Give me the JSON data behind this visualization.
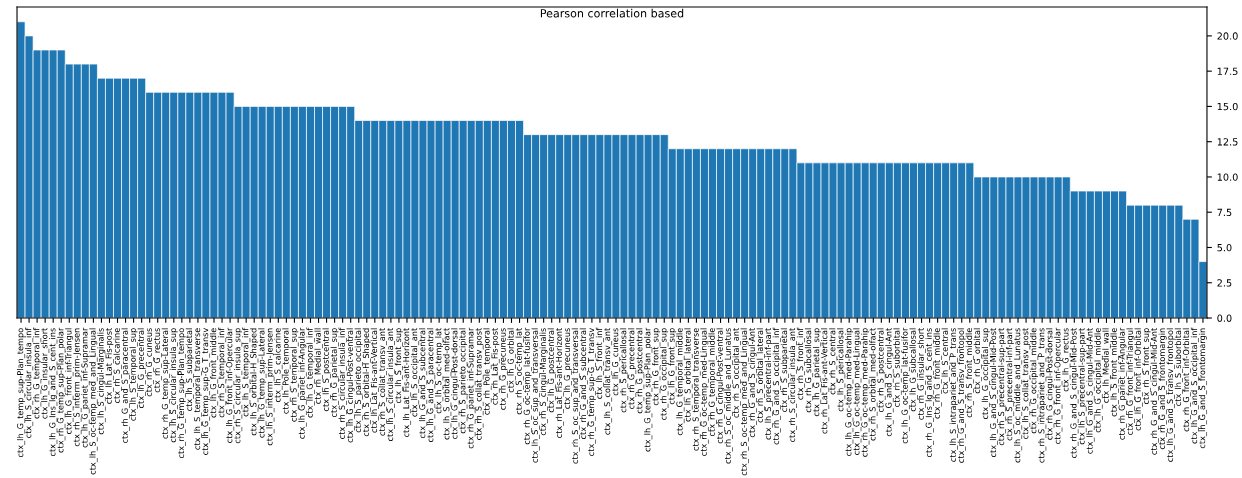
{
  "chart_data": {
    "type": "bar",
    "title": "Pearson correlation based",
    "color": "#1f77b4",
    "categories": [
      "ctx_lh_G_temp_sup-Plan_tempo",
      "ctx_lh_S_circular_insula_inf",
      "ctx_rh_G_temporal_inf",
      "ctx_lh_G_insular_short",
      "ctx_lh_G_Ins_lg_and_S_cent_ins",
      "ctx_rh_G_temp_sup-Plan_polar",
      "ctx_lh_G_front_inf-Triangul",
      "ctx_rh_S_interm_prim-Jensen",
      "ctx_lh_G_pariet_inf-Supramar",
      "ctx_lh_S_oc-temp_med_and_Lingual",
      "ctx_lh_S_cingul-Marginalis",
      "ctx_lh_Lat_Fis-post",
      "ctx_rh_S_calcarine",
      "ctx_rh_G_and_S_paracentral",
      "ctx_lh_S_temporal_sup",
      "ctx_lh_G_precentral",
      "ctx_rh_G_cuneus",
      "ctx_rh_G_rectus",
      "ctx_rh_G_temp_sup-Lateral",
      "ctx_lh_S_circular_insula_sup",
      "ctx_rh_G_temp_sup-Plan_tempo",
      "ctx_lh_S_subparietal",
      "ctx_lh_S_temporal_transverse",
      "ctx_lh_G_temp_sup-G_T_transv",
      "ctx_lh_G_front_middle",
      "ctx_rh_S_temporal_inf",
      "ctx_lh_G_front_inf-Opercular",
      "ctx_rh_S_circular_insula_sup",
      "ctx_lh_S_temporal_inf",
      "ctx_lh_S_orbital-H_Shaped",
      "ctx_lh_G_temp_sup-Lateral",
      "ctx_lh_S_interm_prim-Jensen",
      "ctx_lh_S_calcarine",
      "ctx_lh_Pole_temporal",
      "ctx_rh_S_temporal_sup",
      "ctx_lh_G_pariet_inf-Angular",
      "ctx_lh_G_temporal_inf",
      "ctx_rh_Medial_wall",
      "ctx_lh_S_postcentral",
      "ctx_rh_G_parietal_sup",
      "ctx_rh_S_circular_insula_inf",
      "ctx_lh_G_cingul-Post-ventral",
      "ctx_lh_S_parieto_occipital",
      "ctx_rh_S_orbital-H_Shaped",
      "ctx_lh_Lat_Fis-ant-Vertical",
      "ctx_rh_S_collat_transv_ant",
      "ctx_lh_S_circular_insula_ant",
      "ctx_lh_S_front_sup",
      "ctx_lh_Lat_Fis-ant-Horizont",
      "ctx_lh_S_occipital_ant",
      "ctx_lh_G_and_S_subcentral",
      "ctx_lh_G_and_S_paracentral",
      "ctx_lh_S_oc-temp_lat",
      "ctx_lh_S_orbital_med-olfact",
      "ctx_lh_G_cingul-Post-dorsal",
      "ctx_rh_S_parieto_occipital",
      "ctx_rh_G_pariet_inf-Supramar",
      "ctx_rh_S_collat_transv_post",
      "ctx_rh_Pole_temporal",
      "ctx_rh_Lat_Fis-post",
      "ctx_rh_G_precuneus",
      "ctx_lh_G_orbital",
      "ctx_rh_S_oc-temp_lat",
      "ctx_rh_G_oc-temp_lat-fusifor",
      "ctx_lh_S_oc_sup_and_transversal",
      "ctx_rh_S_cingul-Marginalis",
      "ctx_lh_G_postcentral",
      "ctx_rh_Lat_Fis-ant-Horizont",
      "ctx_lh_G_precuneus",
      "ctx_rh_S_oc_sup_and_transversal",
      "ctx_rh_G_and_S_subcentral",
      "ctx_rh_G_temp_sup-G_T_transv",
      "ctx_lh_S_front_inf",
      "ctx_lh_S_collat_transv_ant",
      "ctx_lh_G_cuneus",
      "ctx_rh_S_pericallosal",
      "ctx_rh_G_precentral",
      "ctx_rh_G_postcentral",
      "ctx_lh_G_temp_sup-Plan_polar",
      "ctx_rh_G_front_sup",
      "ctx_rh_G_occipital_sup",
      "ctx_lh_G_front_sup",
      "ctx_lh_G_temporal_middle",
      "ctx_lh_S_orbital_lateral",
      "ctx_rh_S_temporal_transverse",
      "ctx_rh_G_oc-temp_med-Lingual",
      "ctx_rh_G_temporal_middle",
      "ctx_rh_G_cingul-Post-ventral",
      "ctx_rh_S_oc_middle_and_Lunatus",
      "ctx_rh_S_occipital_ant",
      "ctx_rh_S_oc-temp_med_and_Lingual",
      "ctx_rh_G_and_S_cingul-Ant",
      "ctx_rh_S_orbital_lateral",
      "ctx_lh_S_precentral-inf-part",
      "ctx_rh_G_and_S_occipital_inf",
      "ctx_rh_S_subparietal",
      "ctx_rh_S_circular_insula_ant",
      "ctx_rh_S_front_inf",
      "ctx_rh_G_subcallosal",
      "ctx_lh_G_parietal_sup",
      "ctx_rh_Lat_Fis-ant-Vertical",
      "ctx_rh_S_central",
      "ctx_lh_S_pericallosal",
      "ctx_lh_G_oc-temp_med-Parahip",
      "ctx_lh_G_oc-temp_med-Lingual",
      "ctx_rh_G_oc-temp_med-Parahip",
      "ctx_rh_S_orbital_med-olfact",
      "ctx_rh_S_postcentral",
      "ctx_lh_G_and_S_cingul-Ant",
      "ctx_rh_S_suborbital",
      "ctx_lh_G_oc-temp_lat-fusifor",
      "ctx_lh_G_subcallosal",
      "ctx_rh_G_insular_short",
      "ctx_rh_G_Ins_lg_and_S_cent_ins",
      "ctx_rh_G_front_middle",
      "ctx_lh_S_central",
      "ctx_lh_S_intrapariet_and_P_trans",
      "ctx_rh_G_and_S_transv_frontopol",
      "ctx_rh_S_front_middle",
      "ctx_rh_G_orbital",
      "ctx_lh_G_occipital_sup",
      "ctx_lh_G_and_S_cingul-Mid-Post",
      "ctx_rh_S_precentral-sup-part",
      "ctx_rh_S_precentral-inf-part",
      "ctx_lh_S_oc_middle_and_Lunatus",
      "ctx_lh_S_collat_transv_post",
      "ctx_rh_G_occipital_middle",
      "ctx_rh_S_intrapariet_and_P_trans",
      "ctx_rh_G_cingul-Post-dorsal",
      "ctx_rh_G_front_inf-Opercular",
      "ctx_lh_G_rectus",
      "ctx_rh_G_and_S_cingul-Mid-Post",
      "ctx_lh_S_precentral-sup-part",
      "ctx_lh_G_and_S_cingul-Mid-Ant",
      "ctx_lh_G_occipital_middle",
      "ctx_lh_Medial_wall",
      "ctx_lh_S_front_middle",
      "ctx_rh_G_pariet_inf-Angular",
      "ctx_rh_G_front_inf-Triangul",
      "ctx_lh_G_front_inf-Orbital",
      "ctx_rh_S_front_sup",
      "ctx_rh_G_and_S_cingul-Mid-Ant",
      "ctx_rh_G_and_S_frontomargin",
      "ctx_lh_G_and_S_transv_frontopol",
      "ctx_lh_S_suborbital",
      "ctx_rh_G_front_inf-Orbital",
      "ctx_lh_G_and_S_occipital_inf",
      "ctx_lh_G_and_S_frontomargin"
    ],
    "values": [
      21,
      20,
      19,
      19,
      19,
      19,
      18,
      18,
      18,
      18,
      17,
      17,
      17,
      17,
      17,
      17,
      16,
      16,
      16,
      16,
      16,
      16,
      16,
      16,
      16,
      16,
      16,
      15,
      15,
      15,
      15,
      15,
      15,
      15,
      15,
      15,
      15,
      15,
      15,
      15,
      15,
      15,
      14,
      14,
      14,
      14,
      14,
      14,
      14,
      14,
      14,
      14,
      14,
      14,
      14,
      14,
      14,
      14,
      14,
      14,
      14,
      14,
      14,
      13,
      13,
      13,
      13,
      13,
      13,
      13,
      13,
      13,
      13,
      13,
      13,
      13,
      13,
      13,
      13,
      13,
      13,
      12,
      12,
      12,
      12,
      12,
      12,
      12,
      12,
      12,
      12,
      12,
      12,
      12,
      12,
      12,
      12,
      11,
      11,
      11,
      11,
      11,
      11,
      11,
      11,
      11,
      11,
      11,
      11,
      11,
      11,
      11,
      11,
      11,
      11,
      11,
      11,
      11,
      11,
      10,
      10,
      10,
      10,
      10,
      10,
      10,
      10,
      10,
      10,
      10,
      10,
      9,
      9,
      9,
      9,
      9,
      9,
      9,
      8,
      8,
      8,
      8,
      8,
      8,
      8,
      7,
      7,
      4
    ],
    "ylim": [
      0,
      22.05
    ],
    "yticks": [
      {
        "value": 0,
        "label": "0.0"
      },
      2.5,
      {
        "value": 5,
        "label": "5.0"
      },
      7.5,
      {
        "value": 10,
        "label": "10.0"
      },
      12.5,
      {
        "value": 15,
        "label": "15.0"
      },
      17.5,
      {
        "value": 20,
        "label": "20.0"
      }
    ],
    "grid": false,
    "legend": false
  }
}
